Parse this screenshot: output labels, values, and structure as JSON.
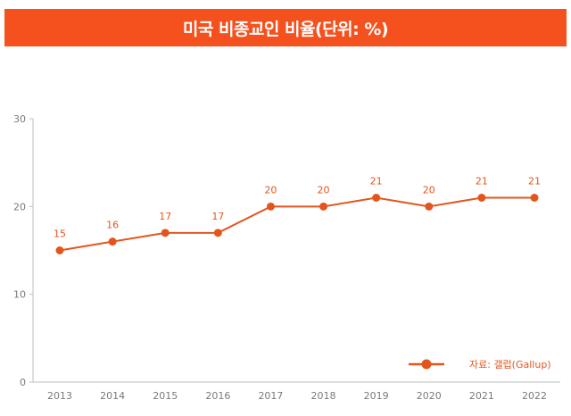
{
  "header": {
    "title": "미국 비종교인 비율(단위: %)"
  },
  "legend": {
    "label": "자료: 갤럽(Gallup)",
    "placement": "bottom-right"
  },
  "colors": {
    "banner": "#f4511e",
    "series": "#e2561e",
    "axis_text": "#7a7a7a",
    "axis_line": "#bdbdbd"
  },
  "chart_data": {
    "type": "line",
    "title": "미국 비종교인 비율(단위: %)",
    "xlabel": "",
    "ylabel": "",
    "x": [
      "2013",
      "2014",
      "2015",
      "2016",
      "2017",
      "2018",
      "2019",
      "2020",
      "2021",
      "2022"
    ],
    "series": [
      {
        "name": "자료: 갤럽(Gallup)",
        "values": [
          15,
          16,
          17,
          17,
          20,
          20,
          21,
          20,
          21,
          21
        ]
      }
    ],
    "ylim": [
      0,
      30
    ],
    "yticks": [
      0,
      10,
      20,
      30
    ],
    "grid": false,
    "data_labels": true
  }
}
